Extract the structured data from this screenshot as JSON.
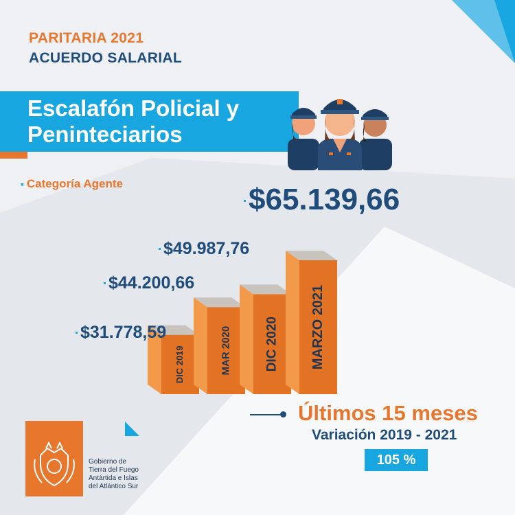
{
  "header": {
    "line1": "PARITARIA 2021",
    "line2": "ACUERDO SALARIAL"
  },
  "banner": {
    "line1": "Escalafón Policial  y",
    "line2": "Peninteciarios"
  },
  "category_label": "Categoría Agente",
  "chart_data": {
    "type": "bar",
    "categories": [
      "DIC 2019",
      "MAR 2020",
      "DIC 2020",
      "MARZO 2021"
    ],
    "values": [
      31778.59,
      44200.66,
      49987.76,
      65139.66
    ],
    "data_labels": [
      "$31.778,59",
      "$44.200,66",
      "$49.987,76",
      "$65.139,66"
    ],
    "title": "",
    "xlabel": "",
    "ylabel": "",
    "bar_color": "#f39a4a",
    "bar_side_color": "#e27324",
    "bar_top_color": "#c9c3bd",
    "grid": false,
    "legend": "none"
  },
  "footer": {
    "title": "Últimos 15 meses",
    "subtitle": "Variación 2019 - 2021",
    "badge": "105 %"
  },
  "government": {
    "lines": [
      "Gobierno de",
      "Tierra del Fuego",
      "Antártida e Islas",
      "del Atlántico Sur"
    ]
  },
  "colors": {
    "orange": "#e8772e",
    "blue": "#17a6e0",
    "navy": "#1f4c7a"
  }
}
